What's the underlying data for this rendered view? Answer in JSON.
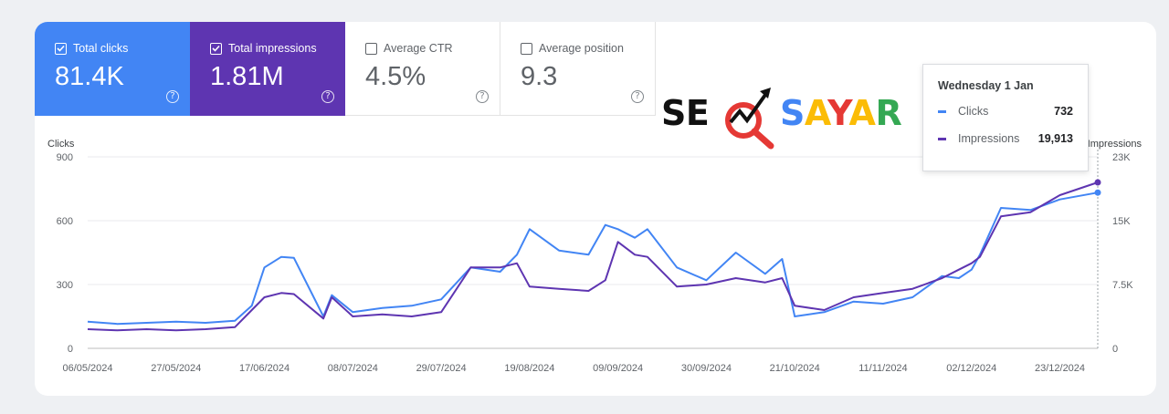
{
  "metrics": [
    {
      "label": "Total clicks",
      "value": "81.4K",
      "checked": true,
      "color": "#4285f4"
    },
    {
      "label": "Total impressions",
      "value": "1.81M",
      "checked": true,
      "color": "#5e35b1"
    },
    {
      "label": "Average CTR",
      "value": "4.5%",
      "checked": false,
      "color": "#ffffff"
    },
    {
      "label": "Average position",
      "value": "9.3",
      "checked": false,
      "color": "#ffffff"
    }
  ],
  "tooltip": {
    "date": "Wednesday 1 Jan",
    "rows": [
      {
        "label": "Clicks",
        "value": "732",
        "color": "#4285f4"
      },
      {
        "label": "Impressions",
        "value": "19,913",
        "color": "#5e35b1"
      }
    ]
  },
  "logo": {
    "text": "SEOSAYAR",
    "part1": "SE",
    "part2": "SAYAR",
    "colors": {
      "dark": "#111111",
      "red": "#e53935",
      "blue": "#4285f4",
      "yellow": "#fbbc05",
      "green": "#34a853"
    }
  },
  "chart_data": {
    "type": "line",
    "left_axis_label": "Clicks",
    "right_axis_label": "Impressions",
    "left_ticks": [
      "0",
      "300",
      "600",
      "900"
    ],
    "right_ticks": [
      "0",
      "7.5K",
      "15K",
      "23K"
    ],
    "left_ylim": [
      0,
      900
    ],
    "right_ylim": [
      0,
      23000
    ],
    "x_tick_labels": [
      "06/05/2024",
      "27/05/2024",
      "17/06/2024",
      "08/07/2024",
      "29/07/2024",
      "19/08/2024",
      "09/09/2024",
      "30/09/2024",
      "21/10/2024",
      "11/11/2024",
      "02/12/2024",
      "23/12/2024"
    ],
    "x_range": [
      "06/05/2024",
      "01/01/2025"
    ],
    "grid": true,
    "series": [
      {
        "name": "Clicks",
        "axis": "left",
        "color": "#4285f4",
        "x": [
          "06/05/2024",
          "13/05/2024",
          "20/05/2024",
          "27/05/2024",
          "03/06/2024",
          "10/06/2024",
          "14/06/2024",
          "17/06/2024",
          "21/06/2024",
          "24/06/2024",
          "01/07/2024",
          "03/07/2024",
          "08/07/2024",
          "15/07/2024",
          "22/07/2024",
          "29/07/2024",
          "05/08/2024",
          "12/08/2024",
          "16/08/2024",
          "19/08/2024",
          "26/08/2024",
          "02/09/2024",
          "06/09/2024",
          "09/09/2024",
          "13/09/2024",
          "16/09/2024",
          "23/09/2024",
          "30/09/2024",
          "07/10/2024",
          "14/10/2024",
          "18/10/2024",
          "21/10/2024",
          "28/10/2024",
          "04/11/2024",
          "11/11/2024",
          "18/11/2024",
          "25/11/2024",
          "29/11/2024",
          "02/12/2024",
          "04/12/2024",
          "09/12/2024",
          "16/12/2024",
          "23/12/2024",
          "01/01/2025"
        ],
        "values": [
          125,
          115,
          120,
          125,
          120,
          130,
          200,
          380,
          430,
          425,
          150,
          250,
          170,
          190,
          200,
          230,
          380,
          360,
          440,
          560,
          460,
          440,
          580,
          560,
          520,
          560,
          380,
          320,
          450,
          350,
          420,
          150,
          170,
          220,
          210,
          240,
          340,
          330,
          370,
          440,
          660,
          650,
          700,
          732
        ]
      },
      {
        "name": "Impressions",
        "axis": "left",
        "color": "#5e35b1",
        "x": [
          "06/05/2024",
          "13/05/2024",
          "20/05/2024",
          "27/05/2024",
          "03/06/2024",
          "10/06/2024",
          "14/06/2024",
          "17/06/2024",
          "21/06/2024",
          "24/06/2024",
          "01/07/2024",
          "03/07/2024",
          "08/07/2024",
          "15/07/2024",
          "22/07/2024",
          "29/07/2024",
          "05/08/2024",
          "12/08/2024",
          "16/08/2024",
          "19/08/2024",
          "26/08/2024",
          "02/09/2024",
          "06/09/2024",
          "09/09/2024",
          "13/09/2024",
          "16/09/2024",
          "23/09/2024",
          "30/09/2024",
          "07/10/2024",
          "14/10/2024",
          "18/10/2024",
          "21/10/2024",
          "28/10/2024",
          "04/11/2024",
          "11/11/2024",
          "18/11/2024",
          "25/11/2024",
          "29/11/2024",
          "02/12/2024",
          "04/12/2024",
          "09/12/2024",
          "16/12/2024",
          "23/12/2024",
          "01/01/2025"
        ],
        "values": [
          90,
          85,
          90,
          85,
          90,
          100,
          180,
          240,
          260,
          255,
          140,
          240,
          150,
          160,
          150,
          170,
          380,
          380,
          400,
          290,
          280,
          270,
          320,
          500,
          440,
          430,
          290,
          300,
          330,
          310,
          330,
          200,
          180,
          240,
          260,
          280,
          330,
          370,
          400,
          430,
          620,
          640,
          720,
          780
        ]
      }
    ]
  }
}
